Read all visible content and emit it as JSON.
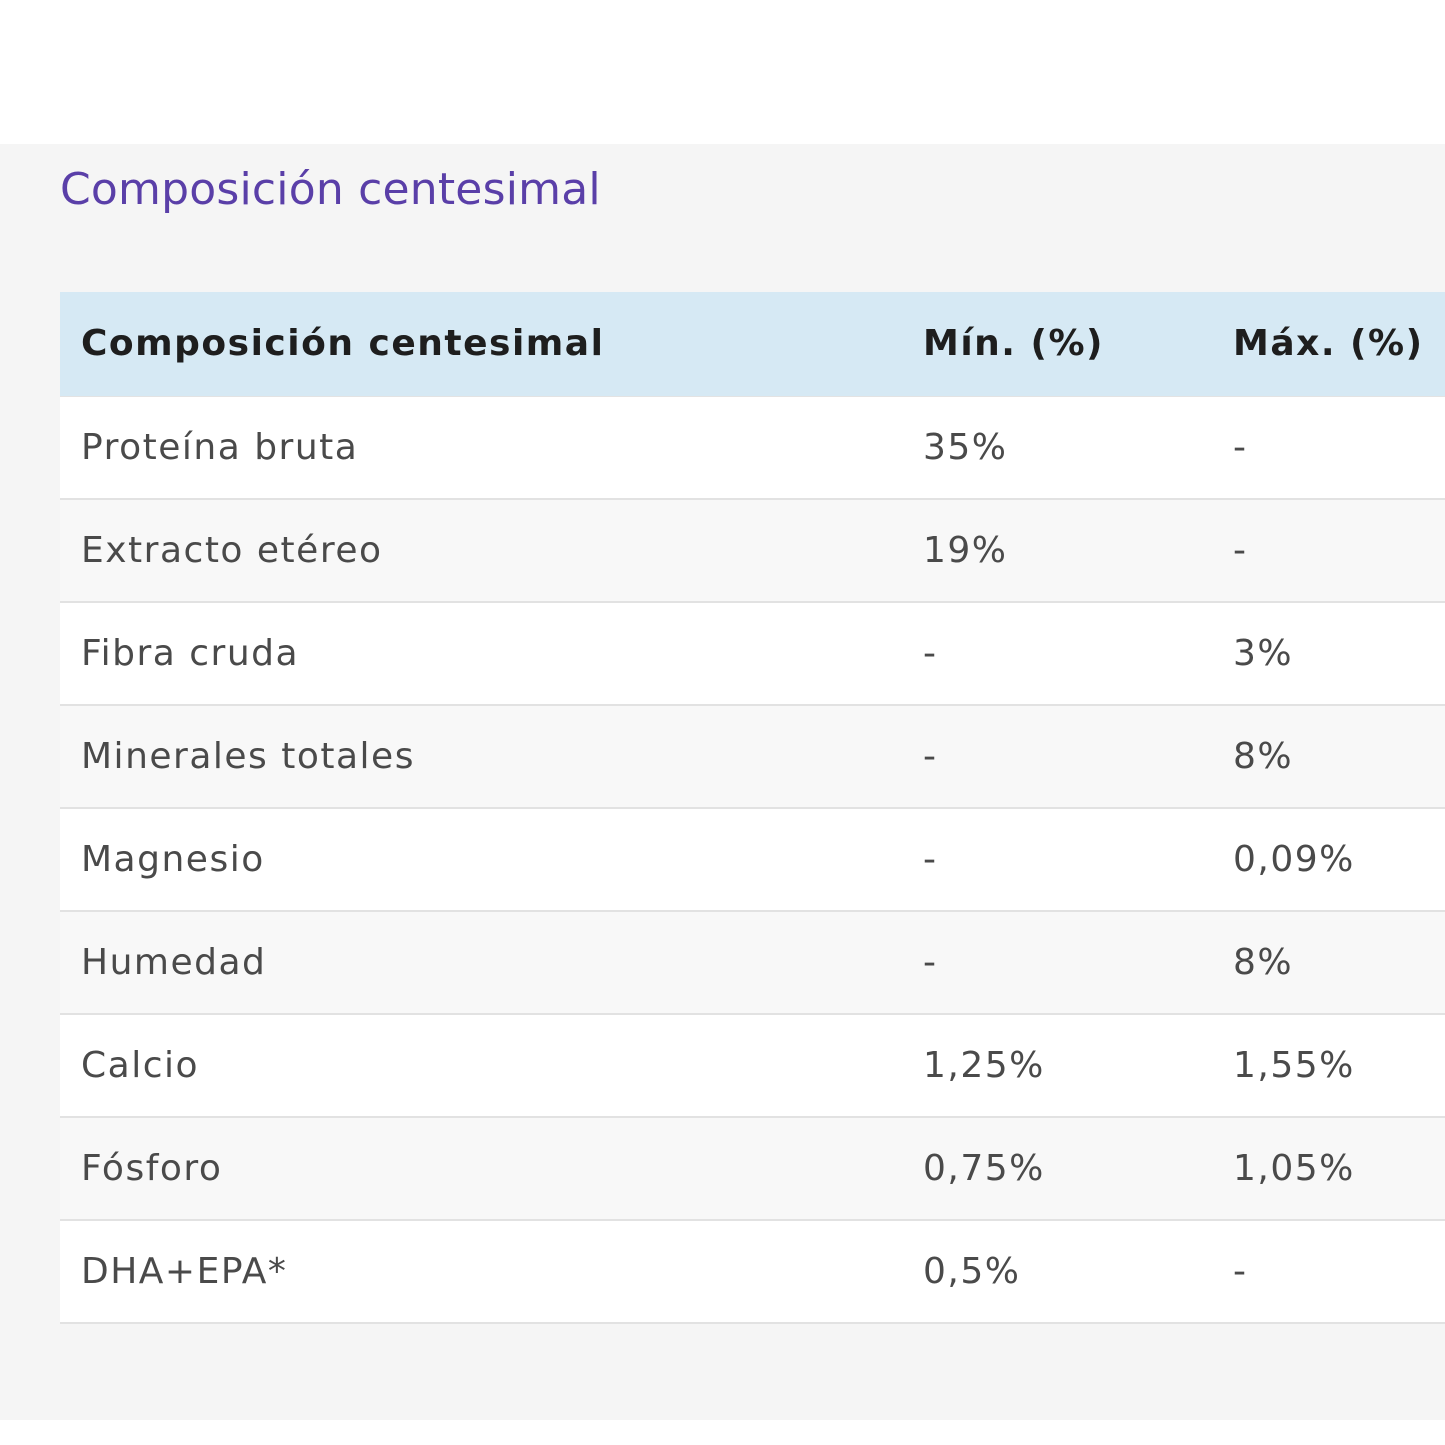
{
  "section": {
    "title": "Composición centesimal"
  },
  "table": {
    "headers": [
      "Composición centesimal",
      "Mín. (%)",
      "Máx. (%)"
    ],
    "rows": [
      [
        "Proteína bruta",
        "35%",
        "-"
      ],
      [
        "Extracto etéreo",
        "19%",
        "-"
      ],
      [
        "Fibra cruda",
        "-",
        "3%"
      ],
      [
        "Minerales totales",
        "-",
        "8%"
      ],
      [
        "Magnesio",
        "-",
        "0,09%"
      ],
      [
        "Humedad",
        "-",
        "8%"
      ],
      [
        "Calcio",
        "1,25%",
        "1,55%"
      ],
      [
        "Fósforo",
        "0,75%",
        "1,05%"
      ],
      [
        "DHA+EPA*",
        "0,5%",
        "-"
      ]
    ]
  },
  "colors": {
    "title": "#5a3fa8",
    "header_background": "#d6e9f4",
    "panel_background": "#f5f5f5"
  }
}
